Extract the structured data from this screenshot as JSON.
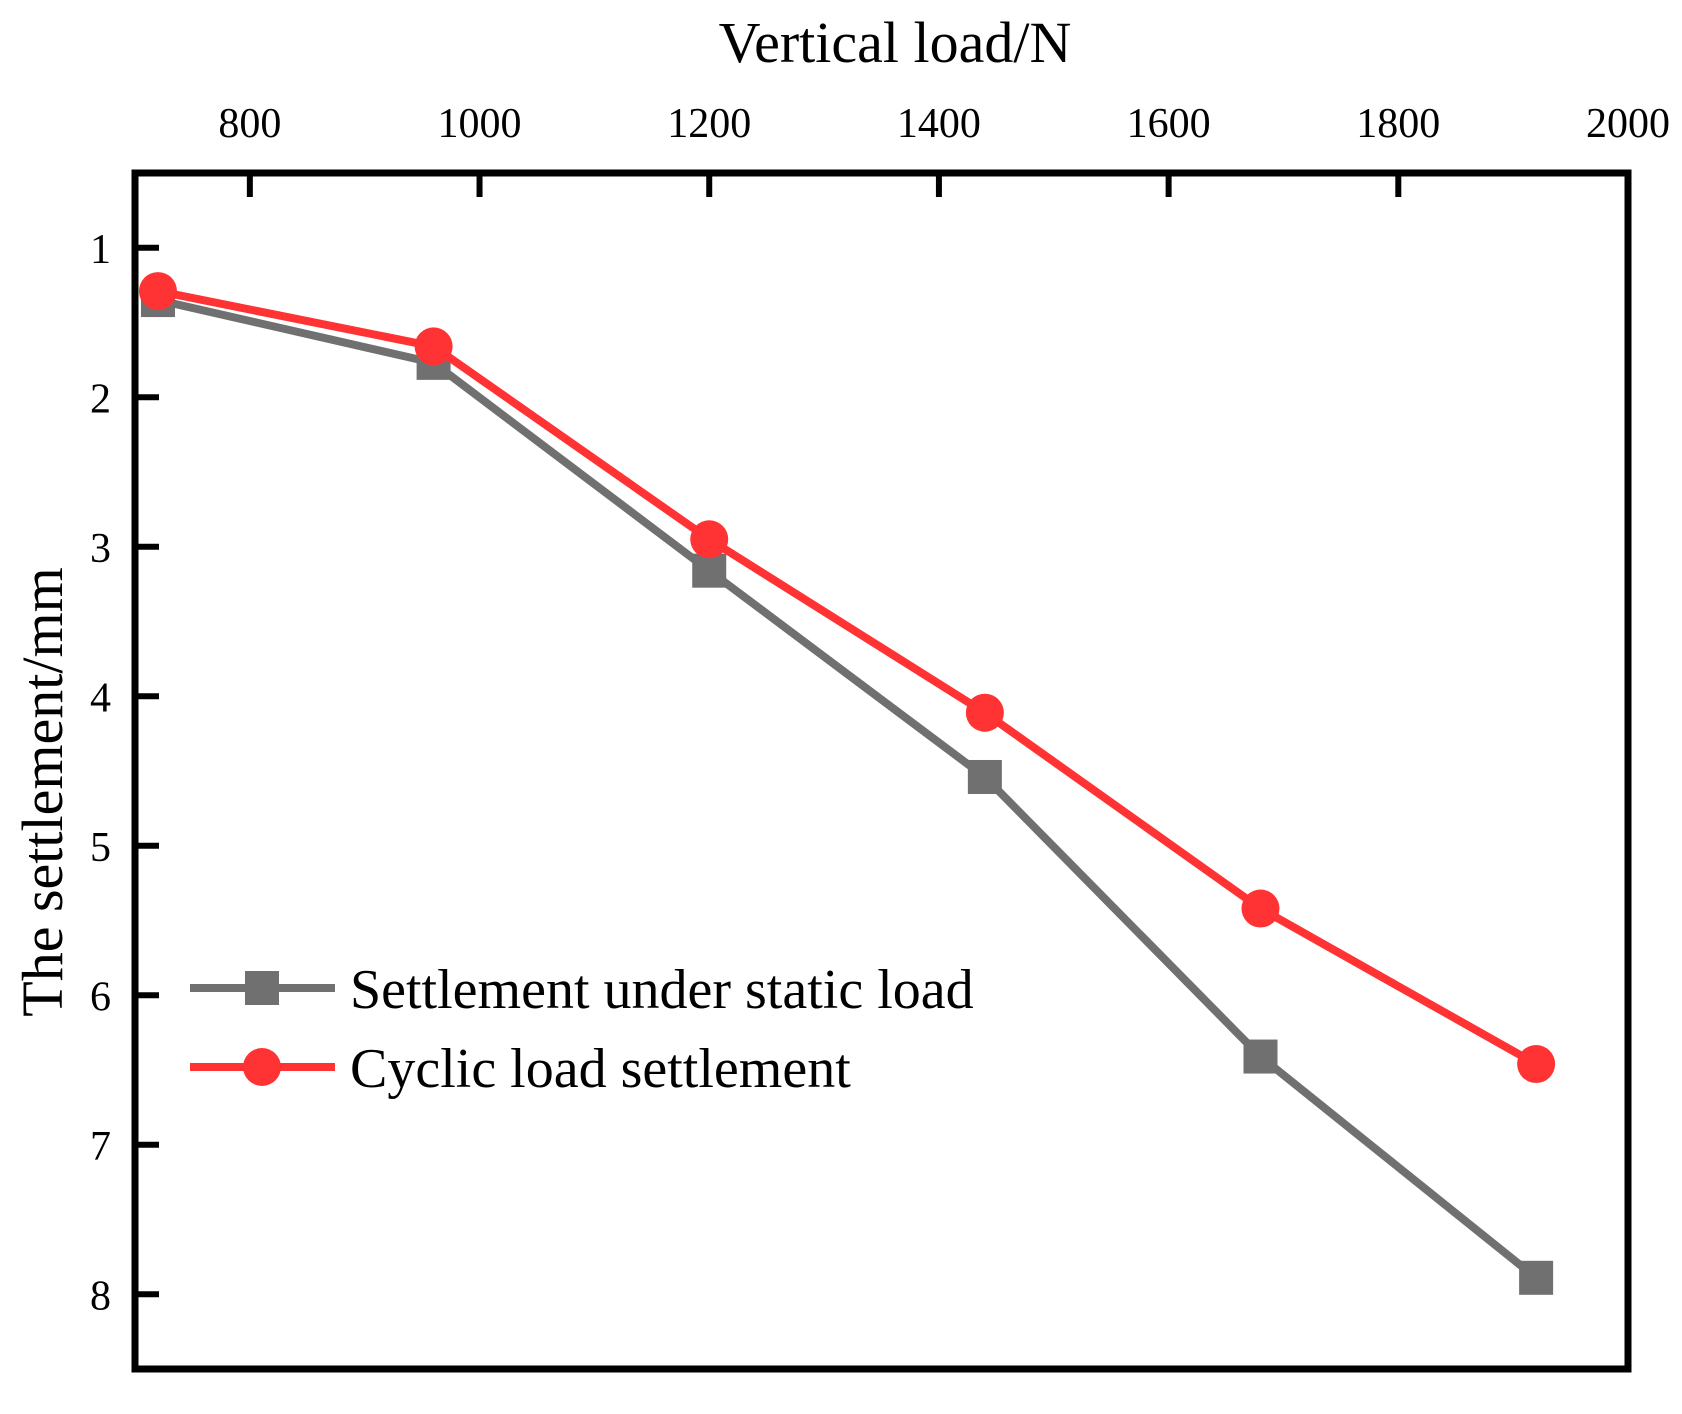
{
  "chart_data": {
    "type": "line",
    "xlabel": "Vertical load/N",
    "ylabel": "The settlement/mm",
    "x_axis_position": "top",
    "y_axis_inverted": true,
    "xlim": [
      700,
      2000
    ],
    "ylim": [
      0.5,
      8.5
    ],
    "x_ticks": [
      800,
      1000,
      1200,
      1400,
      1600,
      1800,
      2000
    ],
    "y_ticks": [
      1,
      2,
      3,
      4,
      5,
      6,
      7,
      8
    ],
    "legend_position": "lower-left",
    "series": [
      {
        "name": "Settlement under static load",
        "color": "#707070",
        "marker": "square",
        "points": [
          {
            "x": 720,
            "y": 1.35
          },
          {
            "x": 960,
            "y": 1.77
          },
          {
            "x": 1200,
            "y": 3.16
          },
          {
            "x": 1440,
            "y": 4.54
          },
          {
            "x": 1680,
            "y": 6.41
          },
          {
            "x": 1920,
            "y": 7.89
          }
        ]
      },
      {
        "name": "Cyclic load settlement",
        "color": "#ff3333",
        "marker": "circle",
        "points": [
          {
            "x": 720,
            "y": 1.29
          },
          {
            "x": 960,
            "y": 1.66
          },
          {
            "x": 1200,
            "y": 2.95
          },
          {
            "x": 1440,
            "y": 4.11
          },
          {
            "x": 1680,
            "y": 5.42
          },
          {
            "x": 1920,
            "y": 6.46
          }
        ]
      }
    ]
  }
}
